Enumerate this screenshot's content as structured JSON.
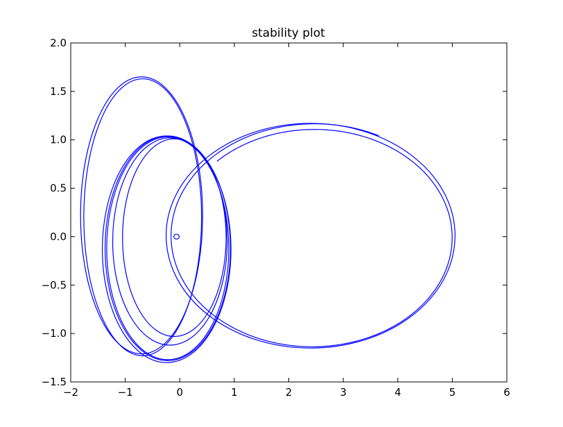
{
  "chart_data": {
    "type": "line",
    "title": "stability plot",
    "xlabel": "",
    "ylabel": "",
    "xlim": [
      -2,
      6
    ],
    "ylim": [
      -1.5,
      2.0
    ],
    "grid": false,
    "legend": "none",
    "line_color": "#0000ff",
    "xticks": [
      "−2",
      "−1",
      "0",
      "1",
      "2",
      "3",
      "4",
      "5",
      "6"
    ],
    "xtick_values": [
      -2,
      -1,
      0,
      1,
      2,
      3,
      4,
      5,
      6
    ],
    "yticks": [
      "−1.5",
      "−1.0",
      "−0.5",
      "0.0",
      "0.5",
      "1.0",
      "1.5",
      "2.0"
    ],
    "ytick_values": [
      -1.5,
      -1.0,
      -0.5,
      0.0,
      0.5,
      1.0,
      1.5,
      2.0
    ],
    "series": [
      {
        "curves": [
          {
            "kind": "ellipse",
            "cx": -0.06,
            "cy": 0.0,
            "rx": 0.05,
            "ry": 0.025
          },
          {
            "kind": "ellipse",
            "cx": -0.1,
            "cy": -0.01,
            "rx": 0.95,
            "ry": 1.02
          },
          {
            "kind": "ellipse",
            "cx": -0.18,
            "cy": -0.05,
            "rx": 1.05,
            "ry": 1.07
          },
          {
            "kind": "ellipse",
            "cx": -0.22,
            "cy": -0.12,
            "rx": 1.12,
            "ry": 1.15
          },
          {
            "kind": "ellipse",
            "cx": -0.22,
            "cy": -0.12,
            "rx": 1.15,
            "ry": 1.16
          },
          {
            "kind": "ellipse",
            "cx": -0.24,
            "cy": -0.13,
            "rx": 1.18,
            "ry": 1.17
          },
          {
            "kind": "ellipse",
            "cx": -0.68,
            "cy": 0.2,
            "rx": 1.08,
            "ry": 1.43
          },
          {
            "kind": "ellipse",
            "cx": -0.7,
            "cy": 0.22,
            "rx": 1.12,
            "ry": 1.43
          },
          {
            "kind": "ellipse",
            "cx": 2.4,
            "cy": 0.01,
            "rx": 2.65,
            "ry": 1.16
          },
          {
            "kind": "spiral",
            "cx": 2.45,
            "cy": 0.0,
            "rx_start": 2.65,
            "rx_end": 2.5,
            "ry_start": 1.17,
            "ry_end": 1.1,
            "turns": 1.2,
            "start_angle": 0.35,
            "end_x_hint": 5.1
          }
        ]
      }
    ]
  }
}
